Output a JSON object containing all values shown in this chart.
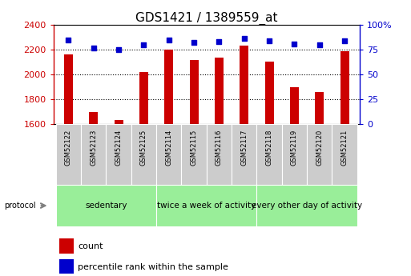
{
  "title": "GDS1421 / 1389559_at",
  "samples": [
    "GSM52122",
    "GSM52123",
    "GSM52124",
    "GSM52125",
    "GSM52114",
    "GSM52115",
    "GSM52116",
    "GSM52117",
    "GSM52118",
    "GSM52119",
    "GSM52120",
    "GSM52121"
  ],
  "counts": [
    2165,
    1700,
    1635,
    2020,
    2200,
    2120,
    2135,
    2230,
    2105,
    1900,
    1860,
    2190
  ],
  "percentiles": [
    85,
    77,
    75,
    80,
    85,
    82,
    83,
    86,
    84,
    81,
    80,
    84
  ],
  "groups": [
    {
      "label": "sedentary",
      "start": 0,
      "end": 4
    },
    {
      "label": "twice a week of activity",
      "start": 4,
      "end": 8
    },
    {
      "label": "every other day of activity",
      "start": 8,
      "end": 12
    }
  ],
  "ylim_left": [
    1600,
    2400
  ],
  "ylim_right": [
    0,
    100
  ],
  "yticks_left": [
    1600,
    1800,
    2000,
    2200,
    2400
  ],
  "yticks_right": [
    0,
    25,
    50,
    75,
    100
  ],
  "bar_color": "#cc0000",
  "dot_color": "#0000cc",
  "tick_area_color": "#cccccc",
  "group_color": "#99ee99",
  "title_fontsize": 11,
  "axis_fontsize": 8,
  "sample_fontsize": 6,
  "group_fontsize": 7.5,
  "legend_fontsize": 8
}
